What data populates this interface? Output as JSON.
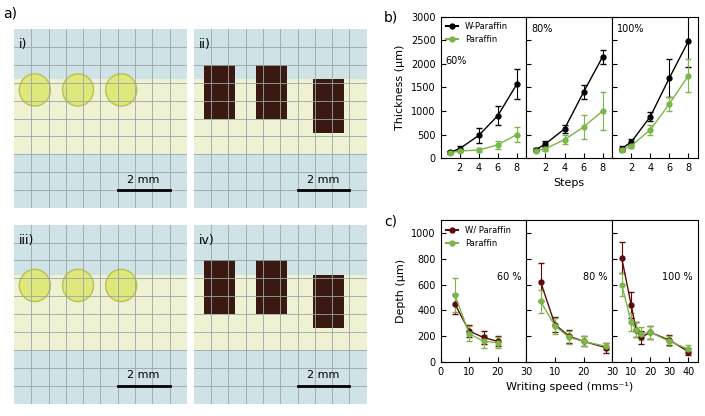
{
  "photo_panel": {
    "label": "a)",
    "photos": [
      {
        "label": "i)",
        "scale_bar": "2 mm"
      },
      {
        "label": "ii)",
        "scale_bar": "2 mm"
      },
      {
        "label": "iii)",
        "scale_bar": "2 mm"
      },
      {
        "label": "iv)",
        "scale_bar": "2 mm"
      }
    ]
  },
  "chart_data": [
    {
      "type": "line",
      "panel_label": "b)",
      "title": "60%",
      "ylabel": "Thickness (μm)",
      "xlim": [
        0,
        9
      ],
      "xticks": [
        2,
        4,
        6,
        8
      ],
      "ylim": [
        0,
        3000
      ],
      "yticks": [
        0,
        500,
        1000,
        1500,
        2000,
        2500,
        3000
      ],
      "legend": "upper left",
      "marker": "circle",
      "line_style": "solid",
      "x": [
        1,
        2,
        4,
        6,
        8
      ],
      "series": [
        {
          "name": "W-Paraffin",
          "color": "#000000",
          "values": [
            120,
            200,
            480,
            900,
            1570
          ],
          "errors": [
            30,
            50,
            150,
            200,
            320
          ]
        },
        {
          "name": "Paraffin",
          "color": "#7ab648",
          "values": [
            110,
            150,
            170,
            280,
            500
          ],
          "errors": [
            20,
            30,
            40,
            80,
            150
          ]
        }
      ]
    },
    {
      "type": "line",
      "title": "80%",
      "xlabel": "Steps",
      "tick_labels": "x",
      "xlim": [
        0,
        9
      ],
      "xticks": [
        2,
        4,
        6,
        8
      ],
      "ylim": [
        0,
        3000
      ],
      "yticks": [
        0,
        500,
        1000,
        1500,
        2000,
        2500,
        3000
      ],
      "marker": "circle",
      "line_style": "solid",
      "x": [
        1,
        2,
        4,
        6,
        8
      ],
      "series": [
        {
          "name": "W-Paraffin",
          "color": "#000000",
          "values": [
            180,
            300,
            620,
            1400,
            2150
          ],
          "errors": [
            40,
            60,
            80,
            150,
            150
          ]
        },
        {
          "name": "Paraffin",
          "color": "#7ab648",
          "values": [
            150,
            200,
            390,
            660,
            1000
          ],
          "errors": [
            30,
            50,
            100,
            250,
            400
          ]
        }
      ]
    },
    {
      "type": "line",
      "title": "100%",
      "tick_labels": "x",
      "xlim": [
        0,
        9
      ],
      "xticks": [
        2,
        4,
        6,
        8
      ],
      "ylim": [
        0,
        3000
      ],
      "yticks": [
        0,
        500,
        1000,
        1500,
        2000,
        2500,
        3000
      ],
      "marker": "circle",
      "line_style": "solid",
      "x": [
        1,
        2,
        4,
        6,
        8
      ],
      "series": [
        {
          "name": "W-Paraffin",
          "color": "#000000",
          "values": [
            200,
            340,
            880,
            1700,
            2480
          ],
          "errors": [
            50,
            60,
            100,
            400,
            550
          ]
        },
        {
          "name": "Paraffin",
          "color": "#7ab648",
          "values": [
            170,
            260,
            600,
            1150,
            1750
          ],
          "errors": [
            40,
            50,
            100,
            150,
            350
          ]
        }
      ]
    },
    {
      "type": "line",
      "panel_label": "c)",
      "title": "60 %",
      "ylabel": "Depth (μm)",
      "xlim": [
        0,
        30
      ],
      "xticks": [
        0,
        10,
        20,
        30
      ],
      "ylim": [
        0,
        1100
      ],
      "yticks": [
        0,
        200,
        400,
        600,
        800,
        1000
      ],
      "legend": "upper left",
      "marker": "circle",
      "line_style": "solid",
      "x": [
        5,
        10,
        15,
        20
      ],
      "series": [
        {
          "name": "W/ Paraffin",
          "color": "#5c0a0a",
          "values": [
            450,
            240,
            190,
            160
          ],
          "errors": [
            80,
            50,
            50,
            40
          ]
        },
        {
          "name": "Paraffin",
          "color": "#7ab648",
          "values": [
            520,
            220,
            160,
            150
          ],
          "errors": [
            130,
            60,
            50,
            40
          ]
        }
      ]
    },
    {
      "type": "line",
      "title": "80 %",
      "xlabel": "Writing speed (mms⁻¹)",
      "tick_labels": "x",
      "xlim": [
        0,
        30
      ],
      "xticks": [
        10,
        20,
        30
      ],
      "ylim": [
        0,
        1100
      ],
      "yticks": [
        0,
        200,
        400,
        600,
        800,
        1000
      ],
      "marker": "circle",
      "line_style": "solid",
      "x": [
        5,
        10,
        15,
        20,
        28
      ],
      "series": [
        {
          "name": "W/ Paraffin",
          "color": "#5c0a0a",
          "values": [
            620,
            290,
            200,
            160,
            110
          ],
          "errors": [
            150,
            60,
            50,
            40,
            40
          ]
        },
        {
          "name": "Paraffin",
          "color": "#7ab648",
          "values": [
            470,
            280,
            190,
            160,
            120
          ],
          "errors": [
            90,
            60,
            50,
            40,
            30
          ]
        }
      ]
    },
    {
      "type": "line",
      "title": "100 %",
      "tick_labels": "x",
      "xlim": [
        0,
        45
      ],
      "xticks": [
        10,
        20,
        30,
        40
      ],
      "ylim": [
        0,
        1100
      ],
      "yticks": [
        0,
        200,
        400,
        600,
        800,
        1000
      ],
      "marker": "circle",
      "line_style": "solid",
      "x": [
        5,
        10,
        12.5,
        15,
        20,
        30,
        40
      ],
      "series": [
        {
          "name": "W/ Paraffin",
          "color": "#5c0a0a",
          "values": [
            810,
            440,
            250,
            190,
            230,
            170,
            80
          ],
          "errors": [
            120,
            100,
            60,
            50,
            50,
            40,
            30
          ]
        },
        {
          "name": "Paraffin",
          "color": "#7ab648",
          "values": [
            600,
            310,
            250,
            220,
            230,
            160,
            100
          ],
          "errors": [
            90,
            70,
            60,
            50,
            50,
            40,
            30
          ]
        }
      ]
    }
  ]
}
